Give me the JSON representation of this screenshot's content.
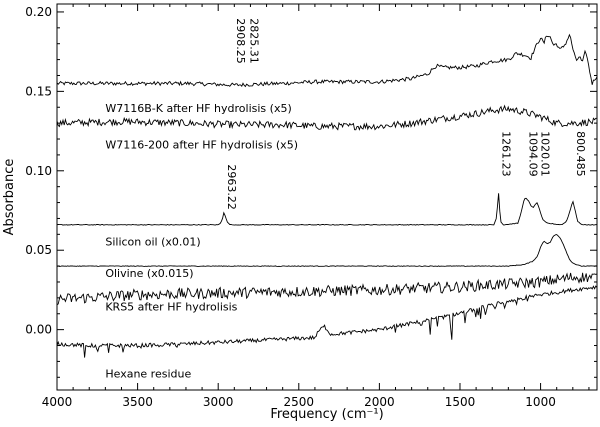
{
  "chart_data": {
    "type": "line",
    "xlabel": "Frequency (cm⁻¹)",
    "ylabel": "Absorbance",
    "xlim": [
      4000,
      650
    ],
    "ylim": [
      -0.038,
      0.205
    ],
    "x_ticks": [
      4000,
      3500,
      3000,
      2500,
      2000,
      1500,
      1000
    ],
    "x_tick_labels": [
      "4000",
      "3500",
      "3000",
      "2500",
      "2000",
      "1500",
      "1000"
    ],
    "y_ticks": [
      0.0,
      0.05,
      0.1,
      0.15,
      0.2
    ],
    "y_tick_labels": [
      "0.00",
      "0.05",
      "0.10",
      "0.15",
      "0.20"
    ],
    "grid": false,
    "series": [
      {
        "name": "W7116B-K after HF hydrolisis (x5)",
        "label_pos": [
          3700,
          0.137
        ],
        "noise": 0.0012,
        "points": [
          [
            4000,
            0.155
          ],
          [
            3600,
            0.155
          ],
          [
            3200,
            0.155
          ],
          [
            2900,
            0.154
          ],
          [
            2600,
            0.155
          ],
          [
            2400,
            0.156
          ],
          [
            2000,
            0.156
          ],
          [
            1800,
            0.158
          ],
          [
            1700,
            0.161
          ],
          [
            1650,
            0.166
          ],
          [
            1600,
            0.165
          ],
          [
            1500,
            0.165
          ],
          [
            1400,
            0.166
          ],
          [
            1300,
            0.169
          ],
          [
            1200,
            0.17
          ],
          [
            1150,
            0.174
          ],
          [
            1100,
            0.173
          ],
          [
            1060,
            0.171
          ],
          [
            1040,
            0.176
          ],
          [
            1020,
            0.18
          ],
          [
            1000,
            0.184
          ],
          [
            980,
            0.18
          ],
          [
            960,
            0.186
          ],
          [
            940,
            0.184
          ],
          [
            920,
            0.179
          ],
          [
            900,
            0.18
          ],
          [
            880,
            0.176
          ],
          [
            860,
            0.178
          ],
          [
            840,
            0.181
          ],
          [
            820,
            0.186
          ],
          [
            800,
            0.177
          ],
          [
            780,
            0.169
          ],
          [
            760,
            0.172
          ],
          [
            740,
            0.168
          ],
          [
            720,
            0.176
          ],
          [
            700,
            0.165
          ],
          [
            680,
            0.155
          ],
          [
            650,
            0.16
          ]
        ]
      },
      {
        "name": "W7116-200 after HF hydrolisis (x5)",
        "label_pos": [
          3700,
          0.114
        ],
        "noise": 0.0022,
        "points": [
          [
            4000,
            0.13
          ],
          [
            3600,
            0.131
          ],
          [
            3200,
            0.13
          ],
          [
            2900,
            0.129
          ],
          [
            2600,
            0.129
          ],
          [
            2400,
            0.128
          ],
          [
            2200,
            0.128
          ],
          [
            2000,
            0.128
          ],
          [
            1800,
            0.13
          ],
          [
            1600,
            0.133
          ],
          [
            1400,
            0.136
          ],
          [
            1300,
            0.138
          ],
          [
            1200,
            0.139
          ],
          [
            1100,
            0.137
          ],
          [
            1000,
            0.134
          ],
          [
            900,
            0.13
          ],
          [
            800,
            0.13
          ],
          [
            650,
            0.131
          ]
        ]
      },
      {
        "name": "Silicon oil (x0.01)",
        "label_pos": [
          3700,
          0.053
        ],
        "noise": 0.0002,
        "points": [
          [
            4000,
            0.066
          ],
          [
            3000,
            0.066
          ],
          [
            2985,
            0.067
          ],
          [
            2970,
            0.071
          ],
          [
            2963,
            0.075
          ],
          [
            2956,
            0.071
          ],
          [
            2940,
            0.067
          ],
          [
            2920,
            0.066
          ],
          [
            1400,
            0.066
          ],
          [
            1290,
            0.066
          ],
          [
            1275,
            0.07
          ],
          [
            1265,
            0.08
          ],
          [
            1261,
            0.087
          ],
          [
            1257,
            0.08
          ],
          [
            1248,
            0.068
          ],
          [
            1230,
            0.066
          ],
          [
            1140,
            0.067
          ],
          [
            1120,
            0.074
          ],
          [
            1105,
            0.081
          ],
          [
            1094,
            0.083
          ],
          [
            1075,
            0.081
          ],
          [
            1060,
            0.078
          ],
          [
            1045,
            0.077
          ],
          [
            1030,
            0.079
          ],
          [
            1020,
            0.08
          ],
          [
            1005,
            0.075
          ],
          [
            985,
            0.069
          ],
          [
            960,
            0.067
          ],
          [
            870,
            0.066
          ],
          [
            840,
            0.068
          ],
          [
            820,
            0.074
          ],
          [
            800,
            0.081
          ],
          [
            785,
            0.075
          ],
          [
            770,
            0.068
          ],
          [
            740,
            0.066
          ],
          [
            650,
            0.066
          ]
        ]
      },
      {
        "name": "Olivine (x0.015)",
        "label_pos": [
          3700,
          0.033
        ],
        "noise": 0.0002,
        "points": [
          [
            4000,
            0.04
          ],
          [
            2000,
            0.04
          ],
          [
            1200,
            0.04
          ],
          [
            1100,
            0.041
          ],
          [
            1050,
            0.043
          ],
          [
            1020,
            0.046
          ],
          [
            1000,
            0.052
          ],
          [
            980,
            0.056
          ],
          [
            960,
            0.054
          ],
          [
            940,
            0.055
          ],
          [
            920,
            0.059
          ],
          [
            900,
            0.06
          ],
          [
            880,
            0.058
          ],
          [
            860,
            0.054
          ],
          [
            840,
            0.049
          ],
          [
            820,
            0.044
          ],
          [
            800,
            0.042
          ],
          [
            780,
            0.041
          ],
          [
            750,
            0.04
          ],
          [
            650,
            0.04
          ]
        ]
      },
      {
        "name": "KRS5 after HF hydrolisis",
        "label_pos": [
          3700,
          0.012
        ],
        "noise": 0.0035,
        "points": [
          [
            4000,
            0.019
          ],
          [
            3500,
            0.022
          ],
          [
            3000,
            0.023
          ],
          [
            2500,
            0.024
          ],
          [
            2000,
            0.025
          ],
          [
            1500,
            0.027
          ],
          [
            1000,
            0.03
          ],
          [
            800,
            0.033
          ],
          [
            650,
            0.033
          ]
        ]
      },
      {
        "name": "Hexane residue",
        "label_pos": [
          3700,
          -0.03
        ],
        "noise": 0.0012,
        "points": [
          [
            4000,
            -0.009
          ],
          [
            3800,
            -0.01
          ],
          [
            3500,
            -0.01
          ],
          [
            3200,
            -0.009
          ],
          [
            3000,
            -0.008
          ],
          [
            2800,
            -0.007
          ],
          [
            2600,
            -0.006
          ],
          [
            2400,
            -0.005
          ],
          [
            2370,
            0.0
          ],
          [
            2340,
            0.002
          ],
          [
            2300,
            -0.003
          ],
          [
            2200,
            -0.002
          ],
          [
            2000,
            0.0
          ],
          [
            1800,
            0.004
          ],
          [
            1600,
            0.008
          ],
          [
            1400,
            0.013
          ],
          [
            1200,
            0.018
          ],
          [
            1000,
            0.022
          ],
          [
            800,
            0.025
          ],
          [
            650,
            0.027
          ]
        ],
        "dips": [
          [
            3830,
            0.012
          ],
          [
            3750,
            0.01
          ],
          [
            3680,
            0.007
          ],
          [
            3590,
            0.006
          ],
          [
            3480,
            0.005
          ],
          [
            3370,
            0.005
          ],
          [
            3260,
            0.004
          ],
          [
            1900,
            0.005
          ],
          [
            1740,
            0.008
          ],
          [
            1640,
            0.01
          ],
          [
            1550,
            0.012
          ],
          [
            1470,
            0.013
          ],
          [
            1400,
            0.012
          ],
          [
            1340,
            0.013
          ],
          [
            1280,
            0.012
          ],
          [
            1220,
            0.011
          ],
          [
            1150,
            0.008
          ],
          [
            1080,
            0.006
          ]
        ]
      }
    ],
    "annotations": [
      {
        "text": "2825.31",
        "x": 2825,
        "y": 0.196
      },
      {
        "text": "2908.25",
        "x": 2908,
        "y": 0.196
      },
      {
        "text": "2963.22",
        "x": 2963,
        "y": 0.104
      },
      {
        "text": "1261.23",
        "x": 1261,
        "y": 0.125
      },
      {
        "text": "1094.09",
        "x": 1094,
        "y": 0.125
      },
      {
        "text": "1020.01",
        "x": 1020,
        "y": 0.125
      },
      {
        "text": "800.485",
        "x": 800,
        "y": 0.125
      }
    ]
  }
}
